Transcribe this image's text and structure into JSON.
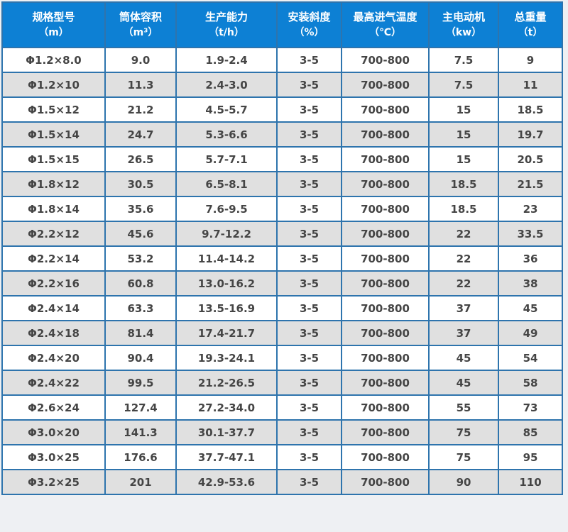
{
  "colors": {
    "header_bg": "#0d80d4",
    "grid_border": "#2e74ad",
    "outer_border": "#1d5e94",
    "row_bg": "#ffffff",
    "alt_row_bg": "#e0e0e0",
    "header_text": "#ffffff",
    "body_text": "#454545",
    "page_bg": "#eef0f3"
  },
  "chart_data": {
    "type": "table",
    "grid": true,
    "legend_position": "none",
    "title": "",
    "columns": [
      {
        "label": "规格型号",
        "unit": "（m）"
      },
      {
        "label": "筒体容积",
        "unit": "（m³）"
      },
      {
        "label": "生产能力",
        "unit": "（t/h）"
      },
      {
        "label": "安装斜度",
        "unit": "（%）"
      },
      {
        "label": "最高进气温度",
        "unit": "（℃）"
      },
      {
        "label": "主电动机",
        "unit": "（kw）"
      },
      {
        "label": "总重量",
        "unit": "（t）"
      }
    ],
    "rows": [
      [
        "Φ1.2×8.0",
        "9.0",
        "1.9-2.4",
        "3-5",
        "700-800",
        "7.5",
        "9"
      ],
      [
        "Φ1.2×10",
        "11.3",
        "2.4-3.0",
        "3-5",
        "700-800",
        "7.5",
        "11"
      ],
      [
        "Φ1.5×12",
        "21.2",
        "4.5-5.7",
        "3-5",
        "700-800",
        "15",
        "18.5"
      ],
      [
        "Φ1.5×14",
        "24.7",
        "5.3-6.6",
        "3-5",
        "700-800",
        "15",
        "19.7"
      ],
      [
        "Φ1.5×15",
        "26.5",
        "5.7-7.1",
        "3-5",
        "700-800",
        "15",
        "20.5"
      ],
      [
        "Φ1.8×12",
        "30.5",
        "6.5-8.1",
        "3-5",
        "700-800",
        "18.5",
        "21.5"
      ],
      [
        "Φ1.8×14",
        "35.6",
        "7.6-9.5",
        "3-5",
        "700-800",
        "18.5",
        "23"
      ],
      [
        "Φ2.2×12",
        "45.6",
        "9.7-12.2",
        "3-5",
        "700-800",
        "22",
        "33.5"
      ],
      [
        "Φ2.2×14",
        "53.2",
        "11.4-14.2",
        "3-5",
        "700-800",
        "22",
        "36"
      ],
      [
        "Φ2.2×16",
        "60.8",
        "13.0-16.2",
        "3-5",
        "700-800",
        "22",
        "38"
      ],
      [
        "Φ2.4×14",
        "63.3",
        "13.5-16.9",
        "3-5",
        "700-800",
        "37",
        "45"
      ],
      [
        "Φ2.4×18",
        "81.4",
        "17.4-21.7",
        "3-5",
        "700-800",
        "37",
        "49"
      ],
      [
        "Φ2.4×20",
        "90.4",
        "19.3-24.1",
        "3-5",
        "700-800",
        "45",
        "54"
      ],
      [
        "Φ2.4×22",
        "99.5",
        "21.2-26.5",
        "3-5",
        "700-800",
        "45",
        "58"
      ],
      [
        "Φ2.6×24",
        "127.4",
        "27.2-34.0",
        "3-5",
        "700-800",
        "55",
        "73"
      ],
      [
        "Φ3.0×20",
        "141.3",
        "30.1-37.7",
        "3-5",
        "700-800",
        "75",
        "85"
      ],
      [
        "Φ3.0×25",
        "176.6",
        "37.7-47.1",
        "3-5",
        "700-800",
        "75",
        "95"
      ],
      [
        "Φ3.2×25",
        "201",
        "42.9-53.6",
        "3-5",
        "700-800",
        "90",
        "110"
      ]
    ]
  }
}
